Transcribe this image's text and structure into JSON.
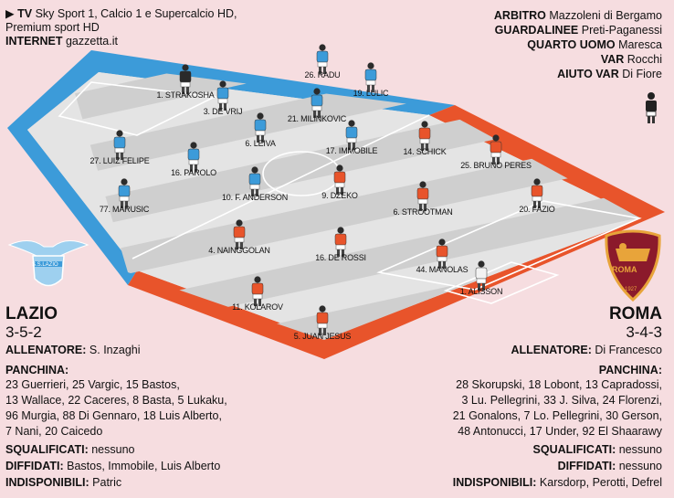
{
  "colors": {
    "lazio": "#3c9bd9",
    "roma": "#e8542b",
    "bg": "#f6dde0"
  },
  "broadcast": {
    "tv_label": "TV",
    "tv_value": "Sky Sport 1, Calcio 1 e Supercalcio HD,",
    "tv_line2": "Premium sport HD",
    "internet_label": "INTERNET",
    "internet_value": "gazzetta.it"
  },
  "officials": [
    {
      "role": "ARBITRO",
      "name": "Mazzoleni di Bergamo"
    },
    {
      "role": "GUARDALINEE",
      "name": "Preti-Paganessi"
    },
    {
      "role": "QUARTO UOMO",
      "name": "Maresca"
    },
    {
      "role": "VAR",
      "name": "Rocchi"
    },
    {
      "role": "AIUTO VAR",
      "name": "Di Fiore"
    }
  ],
  "lazio": {
    "name": "LAZIO",
    "module": "3-5-2",
    "logo_text": "S.S.LAZIO",
    "coach_label": "ALLENATORE:",
    "coach": "S. Inzaghi",
    "bench_label": "PANCHINA:",
    "bench": [
      "23 Guerrieri, 25 Vargic, 15 Bastos,",
      "13 Wallace, 22 Caceres, 8 Basta, 5 Lukaku,",
      "96 Murgia, 88 Di Gennaro, 18 Luis Alberto,",
      "7 Nani, 20 Caicedo"
    ],
    "suspended_label": "SQUALIFICATI:",
    "suspended": "nessuno",
    "warned_label": "DIFFIDATI:",
    "warned": "Bastos, Immobile, Luis Alberto",
    "unavailable_label": "INDISPONIBILI:",
    "unavailable": "Patric",
    "players": [
      {
        "label": "1. STRAKOSHA"
      },
      {
        "label": "3. DE VRIJ"
      },
      {
        "label": "26. RADU"
      },
      {
        "label": "19. LULIC"
      },
      {
        "label": "21. MILINKOVIC"
      },
      {
        "label": "6. LEIVA"
      },
      {
        "label": "27. LUIZ FELIPE"
      },
      {
        "label": "16. PAROLO"
      },
      {
        "label": "17. IMMOBILE"
      },
      {
        "label": "10. F. ANDERSON"
      },
      {
        "label": "77. MARUSIC"
      }
    ]
  },
  "roma": {
    "name": "ROMA",
    "module": "3-4-3",
    "logo_text": "ROMA",
    "logo_year": "1927",
    "coach_label": "ALLENATORE:",
    "coach": "Di Francesco",
    "bench_label": "PANCHINA:",
    "bench": [
      "28 Skorupski, 18 Lobont, 13 Capradossi,",
      "3 Lu. Pellegrini, 33 J. Silva, 24 Florenzi,",
      "21 Gonalons, 7 Lo. Pellegrini, 30 Gerson,",
      "48 Antonucci, 17 Under, 92 El Shaarawy"
    ],
    "suspended_label": "SQUALIFICATI:",
    "suspended": "nessuno",
    "warned_label": "DIFFIDATI:",
    "warned": "nessuno",
    "unavailable_label": "INDISPONIBILI:",
    "unavailable": "Karsdorp, Perotti, Defrel",
    "players": [
      {
        "label": "14. SCHICK"
      },
      {
        "label": "25. BRUNO PERES"
      },
      {
        "label": "9. DZEKO"
      },
      {
        "label": "6. STROOTMAN"
      },
      {
        "label": "20. FAZIO"
      },
      {
        "label": "4. NAINGGOLAN"
      },
      {
        "label": "16. DE ROSSI"
      },
      {
        "label": "44. MANOLAS"
      },
      {
        "label": "1. ALISSON"
      },
      {
        "label": "11. KOLAROV"
      },
      {
        "label": "5. JUAN JESUS"
      }
    ]
  }
}
